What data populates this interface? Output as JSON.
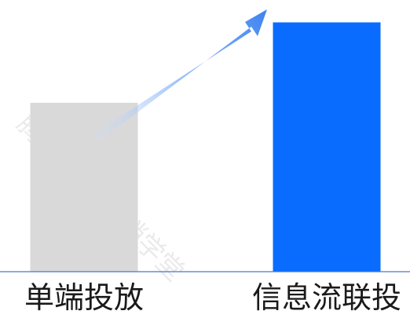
{
  "chart_data": {
    "type": "bar",
    "categories": [
      "单端投放",
      "信息流联投"
    ],
    "values": [
      42,
      62
    ],
    "ylim": [
      0,
      66
    ],
    "grid": false,
    "legend": "none",
    "colors": [
      "#d9d9d9",
      "#0a6cff"
    ],
    "baseline_color": "#4a78c8",
    "trend_arrow_color": "#3b82f0",
    "annotation": "upward-trend-arrow"
  },
  "watermark": {
    "text": "腾讯广告  营销学堂",
    "icon": "signal-stripes-icon"
  }
}
